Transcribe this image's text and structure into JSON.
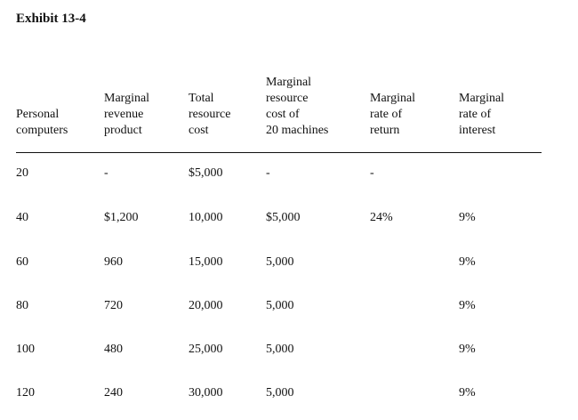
{
  "exhibit": {
    "title": "Exhibit 13-4"
  },
  "table": {
    "headers": [
      [
        "Personal",
        "computers"
      ],
      [
        "Marginal",
        "revenue",
        "product"
      ],
      [
        "Total",
        "resource",
        "cost"
      ],
      [
        "Marginal",
        "resource",
        "cost of",
        "20 machines"
      ],
      [
        "Marginal",
        "rate of",
        "return"
      ],
      [
        "Marginal",
        "rate of",
        "interest"
      ]
    ],
    "rows": [
      [
        "20",
        "-",
        "$5,000",
        "-",
        "-",
        ""
      ],
      [
        "40",
        "$1,200",
        "10,000",
        "$5,000",
        "24%",
        "9%"
      ],
      [
        "60",
        "960",
        "15,000",
        "5,000",
        "",
        "9%"
      ],
      [
        "80",
        "720",
        "20,000",
        "5,000",
        "",
        "9%"
      ],
      [
        "100",
        "480",
        "25,000",
        "5,000",
        "",
        "9%"
      ],
      [
        "120",
        "240",
        "30,000",
        "5,000",
        "",
        "9%"
      ]
    ]
  }
}
